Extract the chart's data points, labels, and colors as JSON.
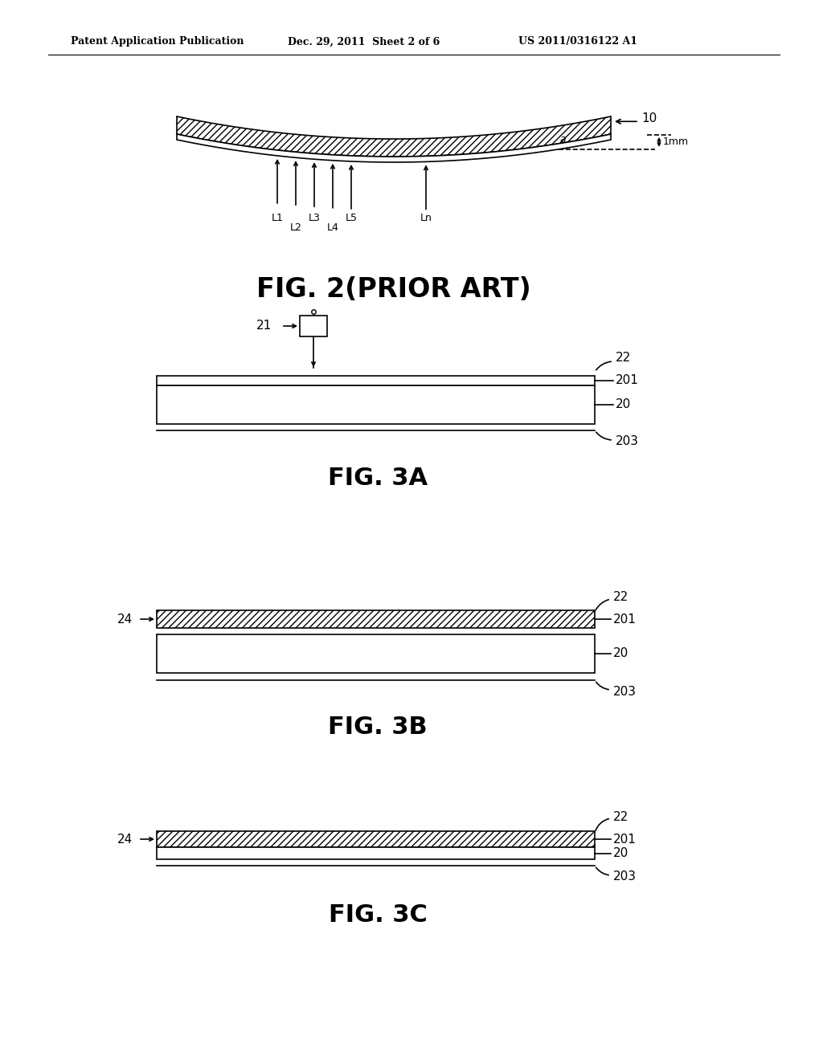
{
  "bg_color": "#ffffff",
  "header_left": "Patent Application Publication",
  "header_mid": "Dec. 29, 2011  Sheet 2 of 6",
  "header_right": "US 2011/0316122 A1",
  "fig2_caption": "FIG. 2(PRIOR ART)",
  "fig3a_caption": "FIG. 3A",
  "fig3b_caption": "FIG. 3B",
  "fig3c_caption": "FIG. 3C",
  "label_10": "10",
  "label_a": "a",
  "label_1mm": "1mm",
  "label_21": "21",
  "label_22": "22",
  "label_201": "201",
  "label_20": "20",
  "label_203": "203",
  "label_24": "24"
}
